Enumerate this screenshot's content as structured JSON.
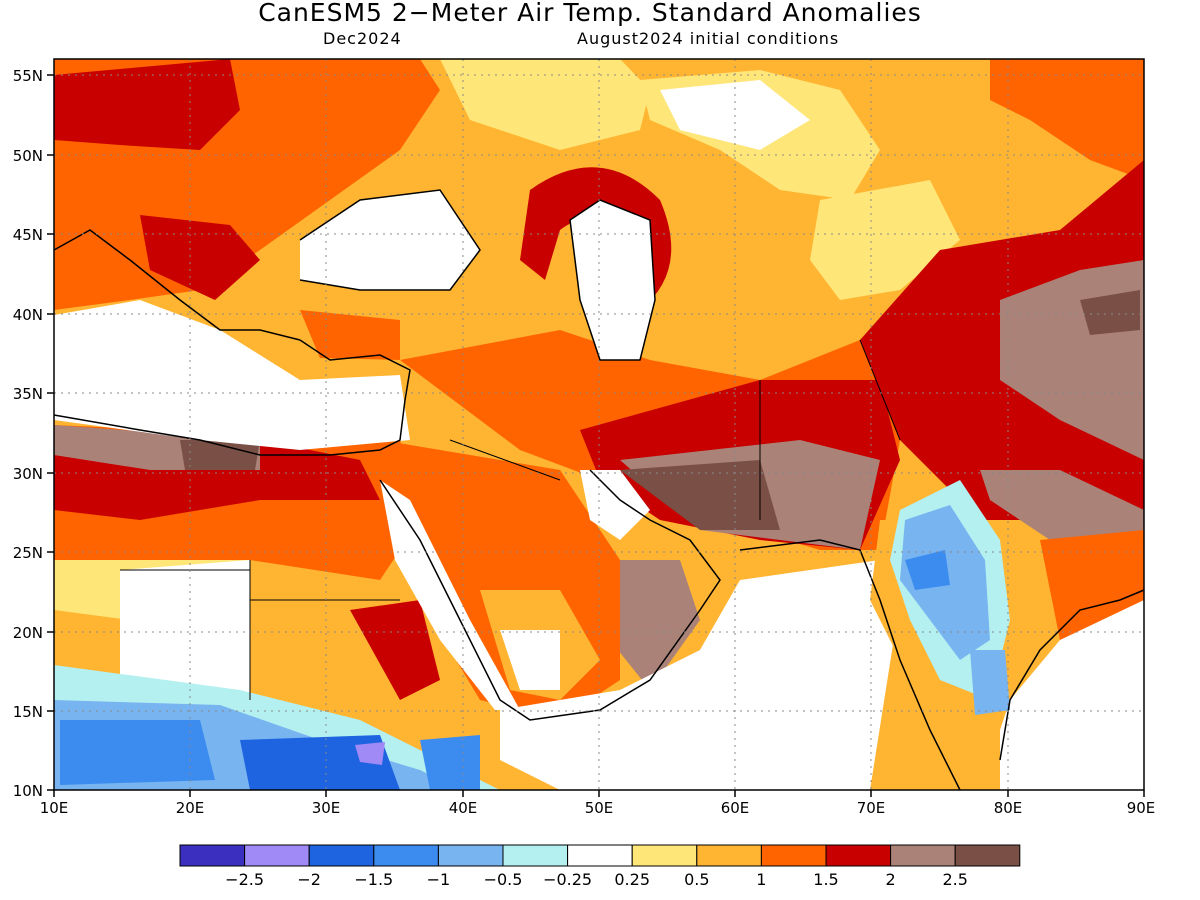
{
  "header": {
    "title": "CanESM5 2−Meter Air Temp. Standard Anomalies",
    "valid_month": "Dec2024",
    "init": "August2024 initial conditions"
  },
  "map": {
    "lon_range": [
      10,
      90
    ],
    "lat_range": [
      10,
      56
    ],
    "lon_labels": [
      "10E",
      "20E",
      "30E",
      "40E",
      "50E",
      "60E",
      "70E",
      "80E",
      "90E"
    ],
    "lat_labels": [
      "10N",
      "15N",
      "20N",
      "25N",
      "30N",
      "35N",
      "40N",
      "45N",
      "50N",
      "55N"
    ],
    "grid": "dotted",
    "ocean_color": "#ffffff"
  },
  "colorbar": {
    "colors": [
      "#3a2fbf",
      "#a08af5",
      "#1e64e0",
      "#3c8cf0",
      "#78b4f0",
      "#b4f0f0",
      "#ffffff",
      "#ffe678",
      "#ffb432",
      "#ff6400",
      "#c80000",
      "#aa8278",
      "#7a5046"
    ],
    "labels": [
      "−2.5",
      "−2",
      "−1.5",
      "−1",
      "−0.5",
      "−0.25",
      "0.25",
      "0.5",
      "1",
      "1.5",
      "2",
      "2.5"
    ]
  }
}
